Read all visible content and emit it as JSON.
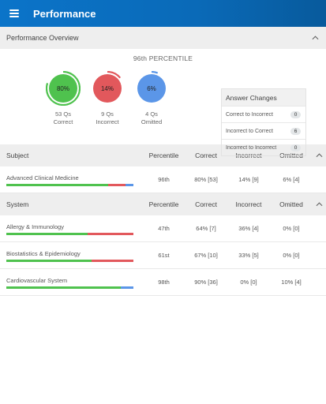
{
  "appbar": {
    "title": "Performance"
  },
  "overview": {
    "header": "Performance Overview",
    "percentile": "96th PERCENTILE",
    "circles": [
      {
        "value": "80%",
        "count": "53 Qs",
        "label": "Correct",
        "color": "#4fc24e",
        "ring": "#4fc24e",
        "fraction": 0.8
      },
      {
        "value": "14%",
        "count": "9 Qs",
        "label": "Incorrect",
        "color": "#e2585c",
        "ring": "#e2585c",
        "fraction": 0.14
      },
      {
        "value": "6%",
        "count": "4 Qs",
        "label": "Omitted",
        "color": "#5b96e8",
        "ring": "#5b96e8",
        "fraction": 0.06
      }
    ],
    "answer_changes": {
      "title": "Answer Changes",
      "rows": [
        {
          "label": "Correct to Incorrect",
          "count": "0"
        },
        {
          "label": "Incorrect to Correct",
          "count": "6"
        },
        {
          "label": "Incorrect to Incorrect",
          "count": "0"
        }
      ]
    }
  },
  "subject_table": {
    "columns": [
      "Subject",
      "Percentile",
      "Correct",
      "Incorrect",
      "Omitted"
    ],
    "rows": [
      {
        "name": "Advanced Clinical Medicine",
        "percentile": "96th",
        "correct": "80% [53]",
        "incorrect": "14% [9]",
        "omitted": "6% [4]",
        "split": [
          0.8,
          0.14,
          0.06
        ]
      }
    ]
  },
  "system_table": {
    "columns": [
      "System",
      "Percentile",
      "Correct",
      "Incorrect",
      "Omitted"
    ],
    "rows": [
      {
        "name": "Allergy & Immunology",
        "percentile": "47th",
        "correct": "64% [7]",
        "incorrect": "36% [4]",
        "omitted": "0% [0]",
        "split": [
          0.64,
          0.36,
          0
        ]
      },
      {
        "name": "Biostatistics & Epidemiology",
        "percentile": "61st",
        "correct": "67% [10]",
        "incorrect": "33% [5]",
        "omitted": "0% [0]",
        "split": [
          0.67,
          0.33,
          0
        ]
      },
      {
        "name": "Cardiovascular System",
        "percentile": "98th",
        "correct": "90% [36]",
        "incorrect": "0% [0]",
        "omitted": "10% [4]",
        "split": [
          0.9,
          0,
          0.1
        ]
      }
    ]
  },
  "colors": {
    "correct": "#4fc24e",
    "incorrect": "#e2585c",
    "omitted": "#5b96e8",
    "appbar": "#0b74c9"
  }
}
